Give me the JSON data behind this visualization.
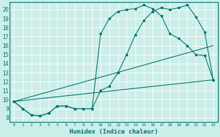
{
  "xlabel": "Humidex (Indice chaleur)",
  "background_color": "#cceee8",
  "grid_color": "#ffffff",
  "line_color": "#007070",
  "xlim": [
    -0.5,
    23.5
  ],
  "ylim": [
    7.5,
    20.8
  ],
  "yticks": [
    8,
    9,
    10,
    11,
    12,
    13,
    14,
    15,
    16,
    17,
    18,
    19,
    20
  ],
  "xticks": [
    0,
    1,
    2,
    3,
    4,
    5,
    6,
    7,
    8,
    9,
    10,
    11,
    12,
    13,
    14,
    15,
    16,
    17,
    18,
    19,
    20,
    21,
    22,
    23
  ],
  "line1_x": [
    0,
    1,
    2,
    3,
    4,
    5,
    6,
    7,
    8,
    9,
    10,
    11,
    12,
    13,
    14,
    15,
    16,
    17,
    18,
    19,
    20,
    21,
    22,
    23
  ],
  "line1_y": [
    9.8,
    9.0,
    8.3,
    8.2,
    8.5,
    9.3,
    9.3,
    9.0,
    9.0,
    9.0,
    17.3,
    19.0,
    19.8,
    20.0,
    20.1,
    20.5,
    20.1,
    19.3,
    17.3,
    16.8,
    16.0,
    15.0,
    14.9,
    12.2
  ],
  "line2_x": [
    0,
    1,
    2,
    3,
    4,
    5,
    6,
    7,
    8,
    9,
    10,
    11,
    12,
    13,
    14,
    15,
    16,
    17,
    18,
    19,
    20,
    21,
    22,
    23
  ],
  "line2_y": [
    9.8,
    9.0,
    8.3,
    8.2,
    8.5,
    9.3,
    9.3,
    9.0,
    9.0,
    9.0,
    11.0,
    11.5,
    13.0,
    15.0,
    17.2,
    18.8,
    19.8,
    20.2,
    20.0,
    20.2,
    20.5,
    19.2,
    17.5,
    12.2
  ],
  "line3_x": [
    0,
    23
  ],
  "line3_y": [
    9.8,
    12.2
  ],
  "line4_x": [
    0,
    23
  ],
  "line4_y": [
    9.8,
    16.0
  ]
}
